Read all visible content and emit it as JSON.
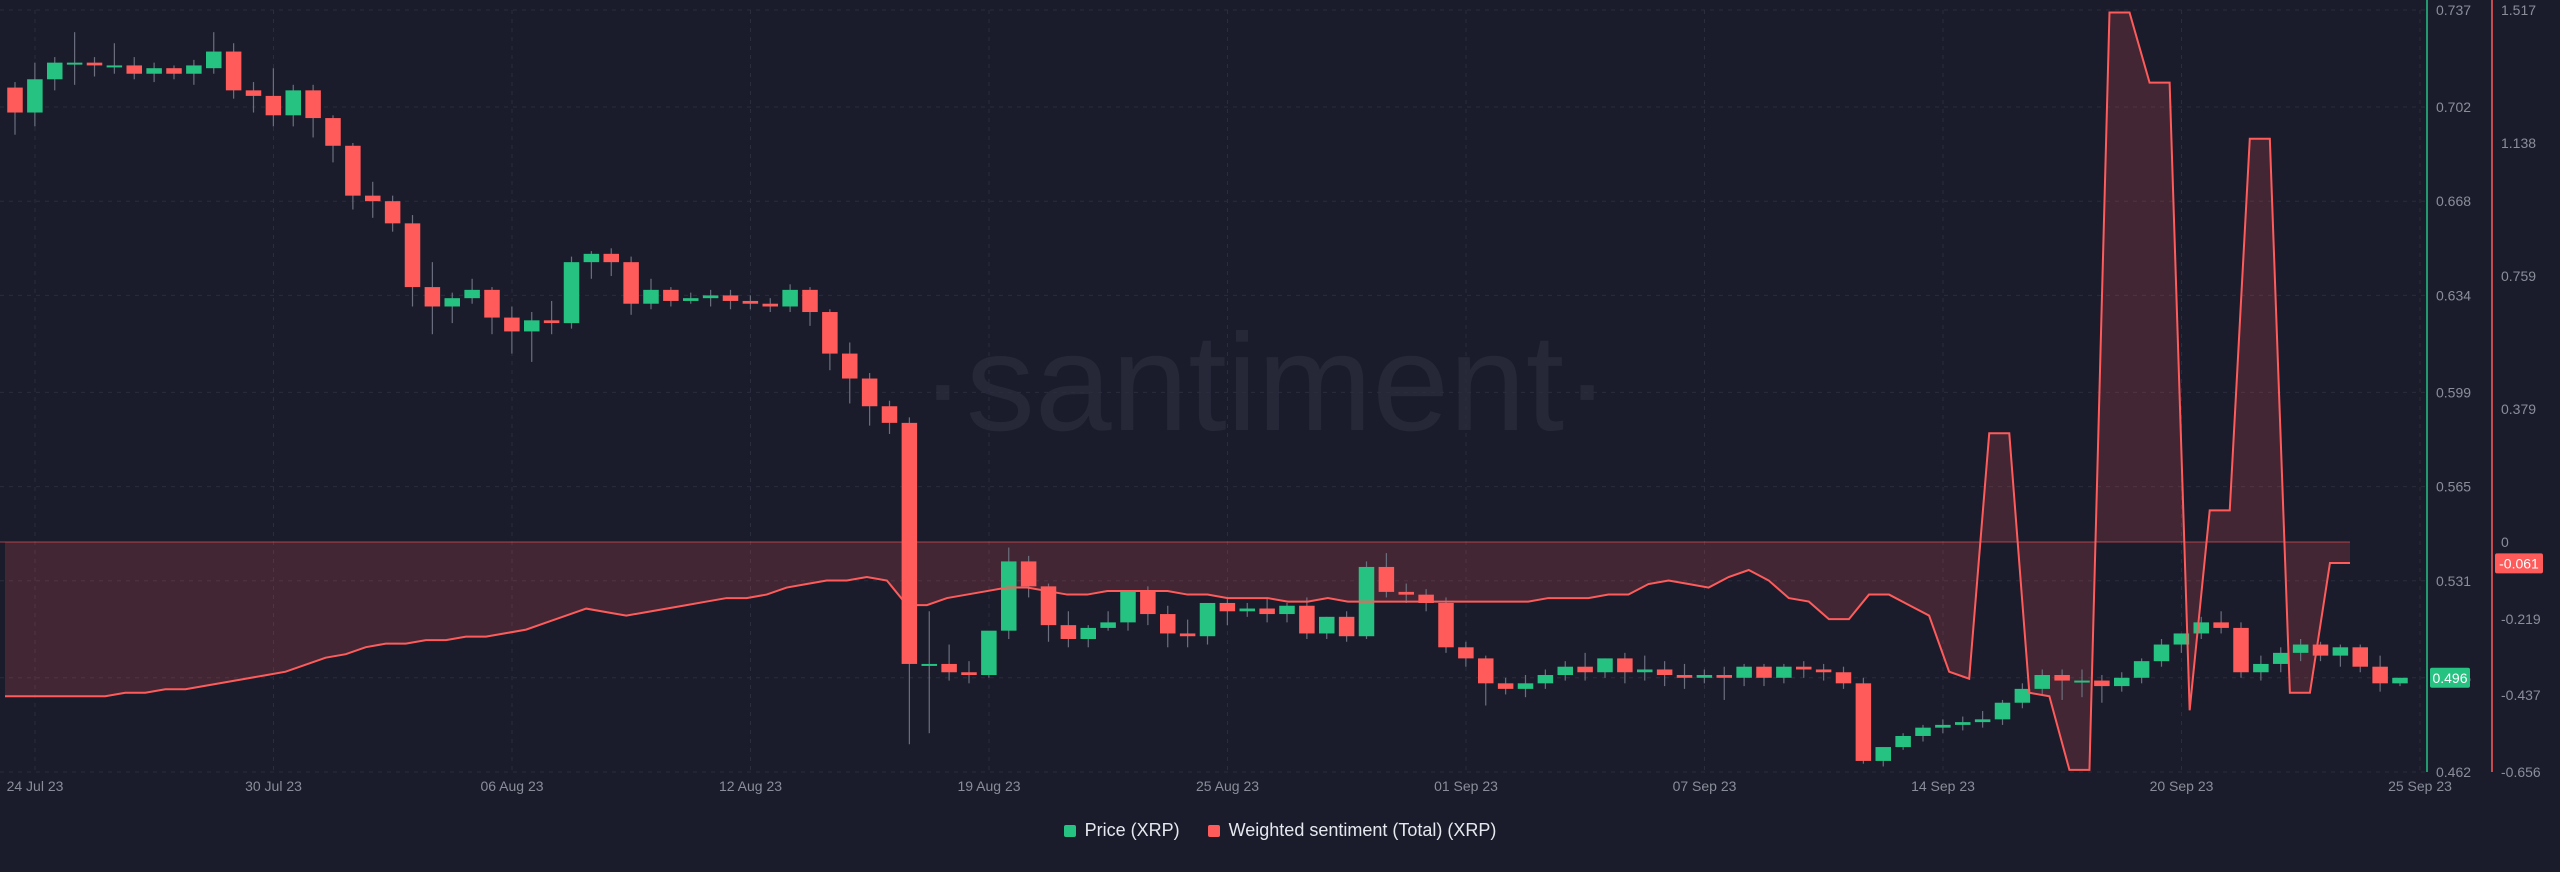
{
  "watermark": "·santiment·",
  "legend": [
    {
      "label": "Price (XRP)",
      "color": "#26c281"
    },
    {
      "label": "Weighted sentiment (Total) (XRP)",
      "color": "#ff5b5b"
    }
  ],
  "chart_data": {
    "type": "candlestick+line",
    "x_tick_labels": [
      "24 Jul 23",
      "30 Jul 23",
      "06 Aug 23",
      "12 Aug 23",
      "19 Aug 23",
      "25 Aug 23",
      "01 Sep 23",
      "07 Sep 23",
      "14 Sep 23",
      "20 Sep 23",
      "25 Sep 23"
    ],
    "price_axis": {
      "label": "Price (XRP)",
      "color": "#26c281",
      "ylim": [
        0.462,
        0.737
      ],
      "ticks": [
        "0.737",
        "0.702",
        "0.668",
        "0.634",
        "0.599",
        "0.565",
        "0.531",
        "0.496",
        "0.462"
      ],
      "last_value": "0.496"
    },
    "sentiment_axis": {
      "label": "Weighted sentiment (Total) (XRP)",
      "color": "#ff5b5b",
      "ylim": [
        -0.656,
        1.517
      ],
      "ticks": [
        "1.517",
        "1.138",
        "0.759",
        "0.379",
        "0",
        "-0.219",
        "-0.437",
        "-0.656"
      ],
      "last_value": "-0.061"
    },
    "price_candles": [
      [
        0.709,
        0.711,
        0.7,
        0.692
      ],
      [
        0.7,
        0.718,
        0.712,
        0.695
      ],
      [
        0.712,
        0.72,
        0.718,
        0.708
      ],
      [
        0.718,
        0.729,
        0.718,
        0.71
      ],
      [
        0.718,
        0.72,
        0.717,
        0.713
      ],
      [
        0.717,
        0.725,
        0.717,
        0.714
      ],
      [
        0.717,
        0.72,
        0.714,
        0.712
      ],
      [
        0.714,
        0.718,
        0.716,
        0.711
      ],
      [
        0.716,
        0.717,
        0.714,
        0.712
      ],
      [
        0.714,
        0.719,
        0.717,
        0.71
      ],
      [
        0.716,
        0.729,
        0.722,
        0.714
      ],
      [
        0.722,
        0.725,
        0.708,
        0.705
      ],
      [
        0.708,
        0.711,
        0.706,
        0.7
      ],
      [
        0.706,
        0.716,
        0.699,
        0.695
      ],
      [
        0.699,
        0.71,
        0.708,
        0.695
      ],
      [
        0.708,
        0.71,
        0.698,
        0.691
      ],
      [
        0.698,
        0.699,
        0.688,
        0.682
      ],
      [
        0.688,
        0.689,
        0.67,
        0.665
      ],
      [
        0.67,
        0.675,
        0.668,
        0.662
      ],
      [
        0.668,
        0.67,
        0.66,
        0.657
      ],
      [
        0.66,
        0.663,
        0.637,
        0.63
      ],
      [
        0.637,
        0.646,
        0.63,
        0.62
      ],
      [
        0.63,
        0.635,
        0.633,
        0.624
      ],
      [
        0.633,
        0.64,
        0.636,
        0.631
      ],
      [
        0.636,
        0.637,
        0.626,
        0.62
      ],
      [
        0.626,
        0.63,
        0.621,
        0.613
      ],
      [
        0.621,
        0.628,
        0.625,
        0.61
      ],
      [
        0.625,
        0.632,
        0.624,
        0.62
      ],
      [
        0.624,
        0.648,
        0.646,
        0.622
      ],
      [
        0.646,
        0.65,
        0.649,
        0.64
      ],
      [
        0.649,
        0.651,
        0.646,
        0.641
      ],
      [
        0.646,
        0.648,
        0.631,
        0.627
      ],
      [
        0.631,
        0.64,
        0.636,
        0.629
      ],
      [
        0.636,
        0.637,
        0.632,
        0.63
      ],
      [
        0.632,
        0.635,
        0.633,
        0.631
      ],
      [
        0.633,
        0.636,
        0.634,
        0.63
      ],
      [
        0.634,
        0.636,
        0.632,
        0.629
      ],
      [
        0.632,
        0.634,
        0.631,
        0.629
      ],
      [
        0.631,
        0.633,
        0.63,
        0.628
      ],
      [
        0.63,
        0.638,
        0.636,
        0.628
      ],
      [
        0.636,
        0.637,
        0.628,
        0.623
      ],
      [
        0.628,
        0.629,
        0.613,
        0.607
      ],
      [
        0.613,
        0.617,
        0.604,
        0.595
      ],
      [
        0.604,
        0.606,
        0.594,
        0.587
      ],
      [
        0.594,
        0.596,
        0.588,
        0.584
      ],
      [
        0.588,
        0.59,
        0.501,
        0.472
      ],
      [
        0.501,
        0.52,
        0.501,
        0.476
      ],
      [
        0.501,
        0.508,
        0.498,
        0.495
      ],
      [
        0.498,
        0.502,
        0.497,
        0.494
      ],
      [
        0.497,
        0.512,
        0.513,
        0.496
      ],
      [
        0.513,
        0.543,
        0.538,
        0.51
      ],
      [
        0.538,
        0.54,
        0.529,
        0.525
      ],
      [
        0.529,
        0.53,
        0.515,
        0.509
      ],
      [
        0.515,
        0.52,
        0.51,
        0.507
      ],
      [
        0.51,
        0.515,
        0.514,
        0.507
      ],
      [
        0.514,
        0.52,
        0.516,
        0.513
      ],
      [
        0.516,
        0.526,
        0.527,
        0.513
      ],
      [
        0.527,
        0.529,
        0.519,
        0.515
      ],
      [
        0.519,
        0.522,
        0.512,
        0.507
      ],
      [
        0.512,
        0.517,
        0.511,
        0.507
      ],
      [
        0.511,
        0.522,
        0.523,
        0.508
      ],
      [
        0.523,
        0.525,
        0.52,
        0.515
      ],
      [
        0.52,
        0.523,
        0.521,
        0.518
      ],
      [
        0.521,
        0.525,
        0.519,
        0.516
      ],
      [
        0.519,
        0.523,
        0.522,
        0.516
      ],
      [
        0.522,
        0.525,
        0.512,
        0.51
      ],
      [
        0.512,
        0.518,
        0.518,
        0.51
      ],
      [
        0.518,
        0.52,
        0.511,
        0.509
      ],
      [
        0.511,
        0.538,
        0.536,
        0.51
      ],
      [
        0.536,
        0.541,
        0.527,
        0.525
      ],
      [
        0.527,
        0.53,
        0.526,
        0.523
      ],
      [
        0.526,
        0.528,
        0.523,
        0.52
      ],
      [
        0.523,
        0.525,
        0.507,
        0.505
      ],
      [
        0.507,
        0.509,
        0.503,
        0.5
      ],
      [
        0.503,
        0.504,
        0.494,
        0.486
      ],
      [
        0.494,
        0.496,
        0.492,
        0.49
      ],
      [
        0.492,
        0.497,
        0.494,
        0.489
      ],
      [
        0.494,
        0.499,
        0.497,
        0.492
      ],
      [
        0.497,
        0.502,
        0.5,
        0.495
      ],
      [
        0.5,
        0.505,
        0.498,
        0.495
      ],
      [
        0.498,
        0.503,
        0.503,
        0.496
      ],
      [
        0.503,
        0.505,
        0.498,
        0.494
      ],
      [
        0.498,
        0.504,
        0.499,
        0.495
      ],
      [
        0.499,
        0.502,
        0.497,
        0.493
      ],
      [
        0.497,
        0.501,
        0.496,
        0.492
      ],
      [
        0.496,
        0.499,
        0.497,
        0.494
      ],
      [
        0.497,
        0.5,
        0.496,
        0.488
      ],
      [
        0.496,
        0.501,
        0.5,
        0.493
      ],
      [
        0.5,
        0.501,
        0.496,
        0.493
      ],
      [
        0.496,
        0.501,
        0.5,
        0.494
      ],
      [
        0.5,
        0.502,
        0.499,
        0.496
      ],
      [
        0.499,
        0.501,
        0.498,
        0.495
      ],
      [
        0.498,
        0.5,
        0.494,
        0.492
      ],
      [
        0.494,
        0.496,
        0.466,
        0.465
      ],
      [
        0.466,
        0.47,
        0.471,
        0.464
      ],
      [
        0.471,
        0.476,
        0.475,
        0.47
      ],
      [
        0.475,
        0.479,
        0.478,
        0.473
      ],
      [
        0.478,
        0.481,
        0.479,
        0.476
      ],
      [
        0.479,
        0.482,
        0.48,
        0.477
      ],
      [
        0.48,
        0.484,
        0.481,
        0.478
      ],
      [
        0.481,
        0.488,
        0.487,
        0.479
      ],
      [
        0.487,
        0.494,
        0.492,
        0.485
      ],
      [
        0.492,
        0.499,
        0.497,
        0.49
      ],
      [
        0.497,
        0.499,
        0.495,
        0.488
      ],
      [
        0.495,
        0.499,
        0.495,
        0.489
      ],
      [
        0.495,
        0.497,
        0.493,
        0.487
      ],
      [
        0.493,
        0.498,
        0.496,
        0.491
      ],
      [
        0.496,
        0.503,
        0.502,
        0.494
      ],
      [
        0.502,
        0.51,
        0.508,
        0.5
      ],
      [
        0.508,
        0.512,
        0.512,
        0.505
      ],
      [
        0.512,
        0.518,
        0.516,
        0.51
      ],
      [
        0.516,
        0.52,
        0.514,
        0.512
      ],
      [
        0.514,
        0.516,
        0.498,
        0.496
      ],
      [
        0.498,
        0.504,
        0.501,
        0.495
      ],
      [
        0.501,
        0.507,
        0.505,
        0.498
      ],
      [
        0.505,
        0.51,
        0.508,
        0.502
      ],
      [
        0.508,
        0.509,
        0.504,
        0.502
      ],
      [
        0.504,
        0.508,
        0.507,
        0.5
      ],
      [
        0.507,
        0.508,
        0.5,
        0.498
      ],
      [
        0.5,
        0.504,
        0.494,
        0.491
      ],
      [
        0.494,
        0.496,
        0.496,
        0.493
      ]
    ],
    "sentiment": [
      -0.44,
      -0.44,
      -0.44,
      -0.44,
      -0.44,
      -0.44,
      -0.43,
      -0.43,
      -0.42,
      -0.42,
      -0.41,
      -0.4,
      -0.39,
      -0.38,
      -0.37,
      -0.35,
      -0.33,
      -0.32,
      -0.3,
      -0.29,
      -0.29,
      -0.28,
      -0.28,
      -0.27,
      -0.27,
      -0.26,
      -0.25,
      -0.23,
      -0.21,
      -0.19,
      -0.2,
      -0.21,
      -0.2,
      -0.19,
      -0.18,
      -0.17,
      -0.16,
      -0.16,
      -0.15,
      -0.13,
      -0.12,
      -0.11,
      -0.11,
      -0.1,
      -0.11,
      -0.18,
      -0.18,
      -0.16,
      -0.15,
      -0.14,
      -0.13,
      -0.13,
      -0.14,
      -0.15,
      -0.15,
      -0.14,
      -0.14,
      -0.14,
      -0.14,
      -0.15,
      -0.15,
      -0.16,
      -0.16,
      -0.16,
      -0.17,
      -0.17,
      -0.16,
      -0.17,
      -0.17,
      -0.17,
      -0.17,
      -0.17,
      -0.17,
      -0.17,
      -0.17,
      -0.17,
      -0.17,
      -0.16,
      -0.16,
      -0.16,
      -0.15,
      -0.15,
      -0.12,
      -0.11,
      -0.12,
      -0.13,
      -0.1,
      -0.08,
      -0.11,
      -0.16,
      -0.17,
      -0.22,
      -0.22,
      -0.15,
      -0.15,
      -0.18,
      -0.21,
      -0.37,
      -0.39,
      0.31,
      0.31,
      -0.43,
      -0.44,
      -0.65,
      -0.65,
      1.51,
      1.51,
      1.31,
      1.31,
      -0.48,
      0.09,
      0.09,
      1.15,
      1.15,
      -0.43,
      -0.43,
      -0.06,
      -0.06
    ],
    "sentiment_shaded_above": 0,
    "grid": true
  }
}
